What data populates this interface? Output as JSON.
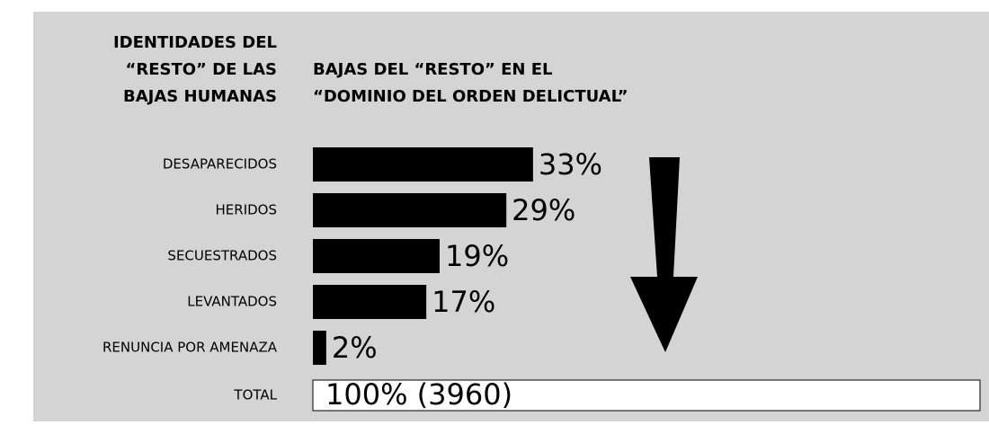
{
  "chart_data": {
    "type": "bar",
    "title": [
      "IDENTIDADES DEL",
      "“RESTO” DE LAS",
      "BAJAS HUMANAS"
    ],
    "subtitle": [
      "BAJAS DEL “RESTO” EN EL",
      "“DOMINIO DEL ORDEN DELICTUAL”"
    ],
    "categories": [
      "DESAPARECIDOS",
      "HERIDOS",
      "SECUESTRADOS",
      "LEVANTADOS",
      "RENUNCIA POR AMENAZA"
    ],
    "values": [
      33,
      29,
      19,
      17,
      2
    ],
    "value_labels": [
      "33%",
      "29%",
      "19%",
      "17%",
      "2%"
    ],
    "total": {
      "label": "TOTAL",
      "value": 100,
      "value_label": "100% (3960)"
    },
    "color": "#000000",
    "xlim": [
      0,
      100
    ]
  }
}
